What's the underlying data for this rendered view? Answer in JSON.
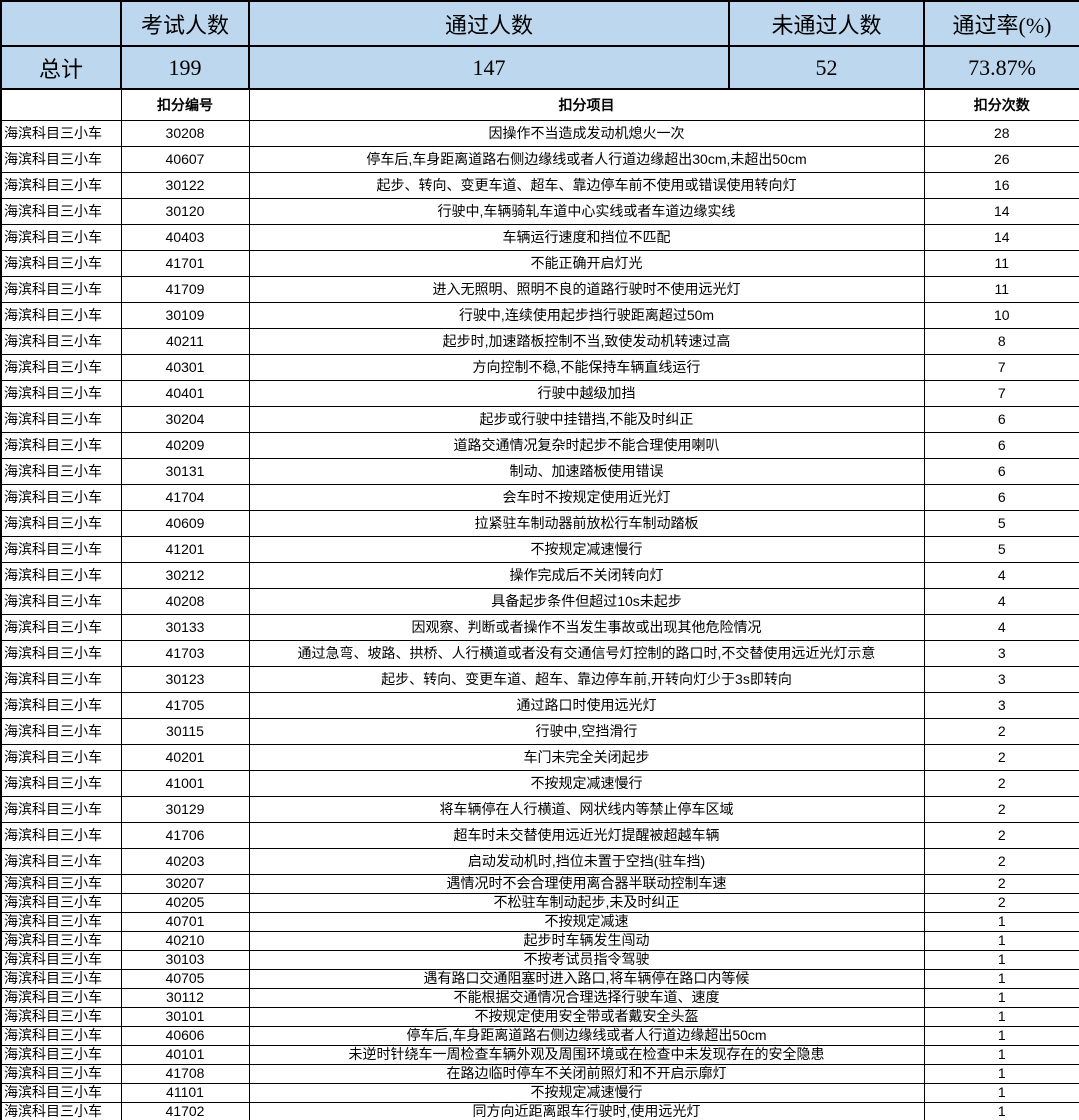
{
  "summary": {
    "col_exam": "考试人数",
    "col_pass": "通过人数",
    "col_fail": "未通过人数",
    "col_rate": "通过率(%)",
    "total_label": "总计",
    "exam_count": "199",
    "pass_count": "147",
    "fail_count": "52",
    "pass_rate": "73.87%"
  },
  "detail": {
    "col_code": "扣分编号",
    "col_item": "扣分项目",
    "col_count": "扣分次数",
    "rows": [
      {
        "category": "海滨科目三小车",
        "code": "30208",
        "item": "因操作不当造成发动机熄火一次",
        "count": "28"
      },
      {
        "category": "海滨科目三小车",
        "code": "40607",
        "item": "停车后,车身距离道路右侧边缘线或者人行道边缘超出30cm,未超出50cm",
        "count": "26"
      },
      {
        "category": "海滨科目三小车",
        "code": "30122",
        "item": "起步、转向、变更车道、超车、靠边停车前不使用或错误使用转向灯",
        "count": "16"
      },
      {
        "category": "海滨科目三小车",
        "code": "30120",
        "item": "行驶中,车辆骑轧车道中心实线或者车道边缘实线",
        "count": "14"
      },
      {
        "category": "海滨科目三小车",
        "code": "40403",
        "item": "车辆运行速度和挡位不匹配",
        "count": "14"
      },
      {
        "category": "海滨科目三小车",
        "code": "41701",
        "item": "不能正确开启灯光",
        "count": "11"
      },
      {
        "category": "海滨科目三小车",
        "code": "41709",
        "item": "进入无照明、照明不良的道路行驶时不使用远光灯",
        "count": "11"
      },
      {
        "category": "海滨科目三小车",
        "code": "30109",
        "item": "行驶中,连续使用起步挡行驶距离超过50m",
        "count": "10"
      },
      {
        "category": "海滨科目三小车",
        "code": "40211",
        "item": "起步时,加速踏板控制不当,致使发动机转速过高",
        "count": "8"
      },
      {
        "category": "海滨科目三小车",
        "code": "40301",
        "item": "方向控制不稳,不能保持车辆直线运行",
        "count": "7"
      },
      {
        "category": "海滨科目三小车",
        "code": "40401",
        "item": "行驶中越级加挡",
        "count": "7"
      },
      {
        "category": "海滨科目三小车",
        "code": "30204",
        "item": "起步或行驶中挂错挡,不能及时纠正",
        "count": "6"
      },
      {
        "category": "海滨科目三小车",
        "code": "40209",
        "item": "道路交通情况复杂时起步不能合理使用喇叭",
        "count": "6"
      },
      {
        "category": "海滨科目三小车",
        "code": "30131",
        "item": "制动、加速踏板使用错误",
        "count": "6"
      },
      {
        "category": "海滨科目三小车",
        "code": "41704",
        "item": "会车时不按规定使用近光灯",
        "count": "6"
      },
      {
        "category": "海滨科目三小车",
        "code": "40609",
        "item": "拉紧驻车制动器前放松行车制动踏板",
        "count": "5"
      },
      {
        "category": "海滨科目三小车",
        "code": "41201",
        "item": "不按规定减速慢行",
        "count": "5"
      },
      {
        "category": "海滨科目三小车",
        "code": "30212",
        "item": "操作完成后不关闭转向灯",
        "count": "4"
      },
      {
        "category": "海滨科目三小车",
        "code": "40208",
        "item": "具备起步条件但超过10s未起步",
        "count": "4"
      },
      {
        "category": "海滨科目三小车",
        "code": "30133",
        "item": "因观察、判断或者操作不当发生事故或出现其他危险情况",
        "count": "4"
      },
      {
        "category": "海滨科目三小车",
        "code": "41703",
        "item": "通过急弯、坡路、拱桥、人行横道或者没有交通信号灯控制的路口时,不交替使用远近光灯示意",
        "count": "3"
      },
      {
        "category": "海滨科目三小车",
        "code": "30123",
        "item": "起步、转向、变更车道、超车、靠边停车前,开转向灯少于3s即转向",
        "count": "3"
      },
      {
        "category": "海滨科目三小车",
        "code": "41705",
        "item": "通过路口时使用远光灯",
        "count": "3"
      },
      {
        "category": "海滨科目三小车",
        "code": "30115",
        "item": "行驶中,空挡滑行",
        "count": "2"
      },
      {
        "category": "海滨科目三小车",
        "code": "40201",
        "item": "车门未完全关闭起步",
        "count": "2"
      },
      {
        "category": "海滨科目三小车",
        "code": "41001",
        "item": "不按规定减速慢行",
        "count": "2"
      },
      {
        "category": "海滨科目三小车",
        "code": "30129",
        "item": "将车辆停在人行横道、网状线内等禁止停车区域",
        "count": "2"
      },
      {
        "category": "海滨科目三小车",
        "code": "41706",
        "item": "超车时未交替使用远近光灯提醒被超越车辆",
        "count": "2"
      },
      {
        "category": "海滨科目三小车",
        "code": "40203",
        "item": "启动发动机时,挡位未置于空挡(驻车挡)",
        "count": "2"
      },
      {
        "category": "海滨科目三小车",
        "code": "30207",
        "item": "遇情况时不会合理使用离合器半联动控制车速",
        "count": "2"
      },
      {
        "category": "海滨科目三小车",
        "code": "40205",
        "item": "不松驻车制动起步,未及时纠正",
        "count": "2"
      },
      {
        "category": "海滨科目三小车",
        "code": "40701",
        "item": "不按规定减速",
        "count": "1"
      },
      {
        "category": "海滨科目三小车",
        "code": "40210",
        "item": "起步时车辆发生闯动",
        "count": "1"
      },
      {
        "category": "海滨科目三小车",
        "code": "30103",
        "item": "不按考试员指令驾驶",
        "count": "1"
      },
      {
        "category": "海滨科目三小车",
        "code": "40705",
        "item": "遇有路口交通阻塞时进入路口,将车辆停在路口内等候",
        "count": "1"
      },
      {
        "category": "海滨科目三小车",
        "code": "30112",
        "item": "不能根据交通情况合理选择行驶车道、速度",
        "count": "1"
      },
      {
        "category": "海滨科目三小车",
        "code": "30101",
        "item": "不按规定使用安全带或者戴安全头盔",
        "count": "1"
      },
      {
        "category": "海滨科目三小车",
        "code": "40606",
        "item": "停车后,车身距离道路右侧边缘线或者人行道边缘超出50cm",
        "count": "1"
      },
      {
        "category": "海滨科目三小车",
        "code": "40101",
        "item": "未逆时针绕车一周检查车辆外观及周围环境或在检查中未发现存在的安全隐患",
        "count": "1"
      },
      {
        "category": "海滨科目三小车",
        "code": "41708",
        "item": "在路边临时停车不关闭前照灯和不开启示廓灯",
        "count": "1"
      },
      {
        "category": "海滨科目三小车",
        "code": "41101",
        "item": "不按规定减速慢行",
        "count": "1"
      },
      {
        "category": "海滨科目三小车",
        "code": "41702",
        "item": "同方向近距离跟车行驶时,使用远光灯",
        "count": "1"
      }
    ]
  },
  "colors": {
    "header_bg": "#BDD7EE",
    "border": "#000000",
    "row_bg": "#FFFFFF"
  }
}
